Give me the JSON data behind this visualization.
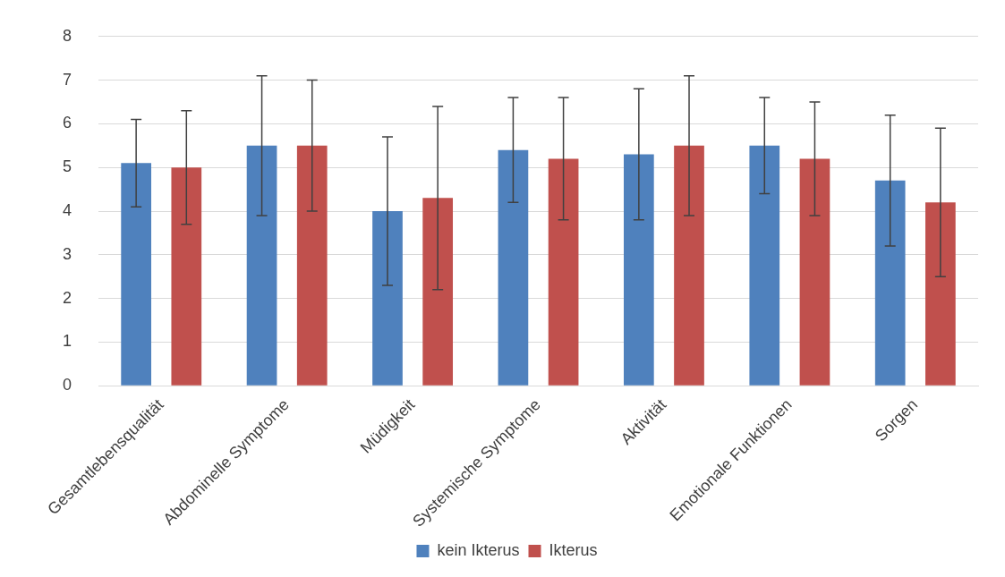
{
  "chart_data": {
    "type": "bar",
    "categories": [
      "Gesamtlebensqualität",
      "Abdominelle Symptome",
      "Müdigkeit",
      "Systemische Symptome",
      "Aktivität",
      "Emotionale Funktionen",
      "Sorgen"
    ],
    "series": [
      {
        "name": "kein Ikterus",
        "color": "#4f81bd",
        "values": [
          5.1,
          5.5,
          4.0,
          5.4,
          5.3,
          5.5,
          4.7
        ],
        "errors": [
          1.0,
          1.6,
          1.7,
          1.2,
          1.5,
          1.1,
          1.5
        ]
      },
      {
        "name": "Ikterus",
        "color": "#c0504d",
        "values": [
          5.0,
          5.5,
          4.3,
          5.2,
          5.5,
          5.2,
          4.2
        ],
        "errors": [
          1.3,
          1.5,
          2.1,
          1.4,
          1.6,
          1.3,
          1.7
        ]
      }
    ],
    "ylim": [
      0,
      8
    ],
    "yticks": [
      0,
      1,
      2,
      3,
      4,
      5,
      6,
      7,
      8
    ],
    "grid": "y",
    "legend": "bottom"
  }
}
